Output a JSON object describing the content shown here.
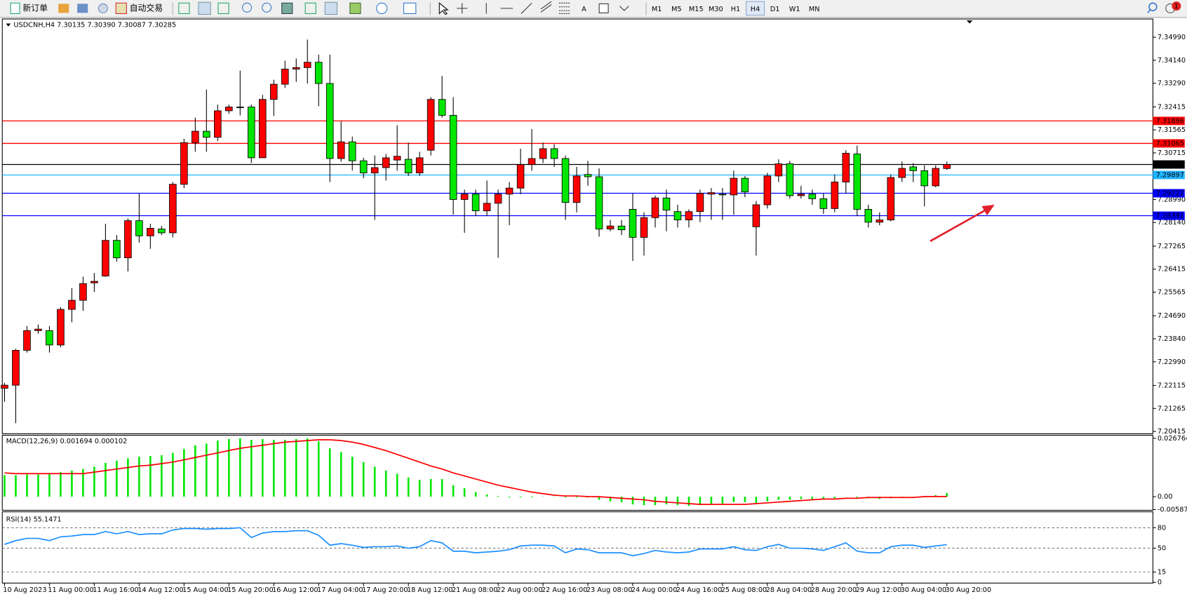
{
  "toolbar": {
    "new_order": "新订单",
    "auto_trading": "自动交易",
    "timeframes": [
      "M1",
      "M5",
      "M15",
      "M30",
      "H1",
      "H4",
      "D1",
      "W1",
      "MN"
    ],
    "active_timeframe": 5,
    "notifications": 1
  },
  "chart_data": [
    {
      "type": "candlestick",
      "title": "USDCNH,H4 7.30135 7.30390 7.30087 7.30285",
      "up_color": "#ff0000",
      "down_color": "#00e600",
      "categories": [
        "10 Aug 2023",
        null,
        null,
        null,
        "11 Aug 00:00",
        null,
        null,
        null,
        "11 Aug 16:00",
        null,
        null,
        null,
        "14 Aug 12:00",
        null,
        null,
        null,
        "15 Aug 04:00",
        null,
        null,
        null,
        "15 Aug 20:00",
        null,
        null,
        null,
        "16 Aug 12:00",
        null,
        null,
        null,
        "17 Aug 04:00",
        null,
        null,
        null,
        "17 Aug 20:00",
        null,
        null,
        null,
        "18 Aug 12:00",
        null,
        null,
        null,
        "21 Aug 08:00",
        null,
        null,
        null,
        "22 Aug 00:00",
        null,
        null,
        null,
        "22 Aug 16:00",
        null,
        null,
        null,
        "23 Aug 08:00",
        null,
        null,
        null,
        "24 Aug 00:00",
        null,
        null,
        null,
        "24 Aug 16:00",
        null,
        null,
        null,
        "25 Aug 08:00",
        null,
        null,
        null,
        "28 Aug 04:00",
        null,
        null,
        null,
        "28 Aug 20:00",
        null,
        null,
        null,
        "29 Aug 12:00",
        null,
        null,
        null,
        "30 Aug 04:00",
        null,
        null,
        null,
        "30 Aug 20:00"
      ],
      "ohlc": [
        [
          7.22012,
          7.22208,
          7.21508,
          7.22124
        ],
        [
          7.22124,
          7.2347,
          7.20723,
          7.23414
        ],
        [
          7.23414,
          7.24311,
          7.2333,
          7.24142
        ],
        [
          7.24142,
          7.24367,
          7.2403,
          7.24198
        ],
        [
          7.24142,
          7.24311,
          7.2333,
          7.2361
        ],
        [
          7.2361,
          7.25011,
          7.23526,
          7.24927
        ],
        [
          7.24927,
          7.25712,
          7.24451,
          7.25264
        ],
        [
          7.25264,
          7.26132,
          7.24871,
          7.2588
        ],
        [
          7.25908,
          7.26273,
          7.25572,
          7.25964
        ],
        [
          7.2616,
          7.28094,
          7.26132,
          7.27478
        ],
        [
          7.27478,
          7.27674,
          7.26693,
          7.26833
        ],
        [
          7.26833,
          7.28291,
          7.26329,
          7.28207
        ],
        [
          7.28207,
          7.29216,
          7.27394,
          7.27646
        ],
        [
          7.27646,
          7.28094,
          7.27169,
          7.27926
        ],
        [
          7.27898,
          7.2801,
          7.27674,
          7.27758
        ],
        [
          7.27758,
          7.29636,
          7.2759,
          7.29552
        ],
        [
          7.29552,
          7.31234,
          7.29412,
          7.31094
        ],
        [
          7.31094,
          7.32019,
          7.30757,
          7.31514
        ],
        [
          7.31514,
          7.33056,
          7.30757,
          7.3129
        ],
        [
          7.3129,
          7.32495,
          7.3115,
          7.32271
        ],
        [
          7.32271,
          7.32495,
          7.32159,
          7.32411
        ],
        [
          7.32411,
          7.33756,
          7.32103,
          7.32383
        ],
        [
          7.32411,
          7.32495,
          7.30337,
          7.30533
        ],
        [
          7.30533,
          7.32859,
          7.30533,
          7.32691
        ],
        [
          7.32691,
          7.3342,
          7.32075,
          7.33252
        ],
        [
          7.33252,
          7.34121,
          7.33112,
          7.33812
        ],
        [
          7.33812,
          7.34205,
          7.33336,
          7.33868
        ],
        [
          7.33868,
          7.34905,
          7.3328,
          7.34065
        ],
        [
          7.34065,
          7.34345,
          7.32439,
          7.3328
        ],
        [
          7.3328,
          7.34345,
          7.29636,
          7.30505
        ],
        [
          7.30505,
          7.31878,
          7.30393,
          7.31122
        ],
        [
          7.31122,
          7.31318,
          7.30056,
          7.30421
        ],
        [
          7.30421,
          7.30533,
          7.29776,
          7.29972
        ],
        [
          7.29972,
          7.30617,
          7.28235,
          7.30169
        ],
        [
          7.30169,
          7.30673,
          7.29692,
          7.30533
        ],
        [
          7.30449,
          7.31738,
          7.30056,
          7.30589
        ],
        [
          7.30477,
          7.31094,
          7.2986,
          7.29972
        ],
        [
          7.29972,
          7.30757,
          7.2986,
          7.30533
        ],
        [
          7.30813,
          7.32775,
          7.30617,
          7.32691
        ],
        [
          7.32691,
          7.3356,
          7.32019,
          7.32103
        ],
        [
          7.32103,
          7.32775,
          7.28431,
          7.28991
        ],
        [
          7.28991,
          7.29356,
          7.27758,
          7.29188
        ],
        [
          7.29188,
          7.29356,
          7.28375,
          7.28571
        ],
        [
          7.28571,
          7.29692,
          7.28375,
          7.28851
        ],
        [
          7.28851,
          7.29356,
          7.26833,
          7.29188
        ],
        [
          7.29188,
          7.29636,
          7.28038,
          7.29412
        ],
        [
          7.29412,
          7.30869,
          7.29188,
          7.30281
        ],
        [
          7.30281,
          7.31598,
          7.30056,
          7.30505
        ],
        [
          7.30505,
          7.31094,
          7.30337,
          7.30869
        ],
        [
          7.30869,
          7.31037,
          7.30197,
          7.30505
        ],
        [
          7.30505,
          7.30617,
          7.28235,
          7.28879
        ],
        [
          7.28879,
          7.30197,
          7.28515,
          7.2986
        ],
        [
          7.29916,
          7.30421,
          7.29496,
          7.29832
        ],
        [
          7.29832,
          7.30141,
          7.27618,
          7.27898
        ],
        [
          7.27898,
          7.28235,
          7.27814,
          7.2801
        ],
        [
          7.2801,
          7.28235,
          7.27674,
          7.2787
        ],
        [
          7.28627,
          7.29216,
          7.26721,
          7.2759
        ],
        [
          7.2759,
          7.28515,
          7.26917,
          7.28319
        ],
        [
          7.28319,
          7.29132,
          7.27954,
          7.29047
        ],
        [
          7.29047,
          7.29356,
          7.27814,
          7.28599
        ],
        [
          7.28543,
          7.28795,
          7.27954,
          7.28235
        ],
        [
          7.28235,
          7.28627,
          7.27954,
          7.28543
        ],
        [
          7.28543,
          7.29356,
          7.28151,
          7.29216
        ],
        [
          7.29188,
          7.29412,
          7.28235,
          7.29244
        ],
        [
          7.29188,
          7.29412,
          7.28235,
          7.2916
        ],
        [
          7.2916,
          7.30056,
          7.28431,
          7.29776
        ],
        [
          7.29776,
          7.2986,
          7.29075,
          7.29272
        ],
        [
          7.27982,
          7.28935,
          7.26917,
          7.28795
        ],
        [
          7.28795,
          7.29972,
          7.28655,
          7.2986
        ],
        [
          7.2986,
          7.30477,
          7.29636,
          7.30309
        ],
        [
          7.30309,
          7.30421,
          7.29019,
          7.29132
        ],
        [
          7.29132,
          7.29496,
          7.29019,
          7.29188
        ],
        [
          7.29188,
          7.29356,
          7.28795,
          7.29019
        ],
        [
          7.29019,
          7.29216,
          7.28459,
          7.28655
        ],
        [
          7.28655,
          7.29916,
          7.28515,
          7.29636
        ],
        [
          7.29636,
          7.30813,
          7.29216,
          7.30701
        ],
        [
          7.30673,
          7.30981,
          7.28375,
          7.28627
        ],
        [
          7.28627,
          7.28795,
          7.27954,
          7.28151
        ],
        [
          7.28151,
          7.28515,
          7.28038,
          7.28235
        ],
        [
          7.28235,
          7.29916,
          7.28179,
          7.29804
        ],
        [
          7.29804,
          7.30393,
          7.29636,
          7.30141
        ],
        [
          7.30197,
          7.30337,
          7.29636,
          7.30056
        ],
        [
          7.30056,
          7.30253,
          7.28739,
          7.29496
        ],
        [
          7.29496,
          7.30253,
          7.2944,
          7.30141
        ],
        [
          7.30135,
          7.3039,
          7.30087,
          7.30285
        ]
      ],
      "ylim": [
        7.2033,
        7.3561
      ],
      "yticks": [
        {
          "value": 7.3499,
          "label": "7.34990"
        },
        {
          "value": 7.3414,
          "label": "7.34140"
        },
        {
          "value": 7.3329,
          "label": "7.33290"
        },
        7.32415,
        7.31565,
        7.30715,
        {
          "value": 7.2899,
          "label": "7.28990"
        },
        {
          "value": 7.2814,
          "label": "7.28140"
        },
        7.27265,
        7.26415,
        7.25565,
        {
          "value": 7.2469,
          "label": "7.24690"
        },
        {
          "value": 7.2384,
          "label": "7.23840"
        },
        {
          "value": 7.2299,
          "label": "7.22990"
        },
        7.22115,
        7.21265,
        7.20415
      ],
      "grid": false,
      "levels": [
        {
          "value": 7.31896,
          "color": "#ff0000"
        },
        {
          "value": 7.31065,
          "color": "#ff0000"
        },
        {
          "value": 7.30285,
          "color": "#000000"
        },
        {
          "value": 7.29897,
          "color": "#1eb4ff"
        },
        {
          "value": 7.29222,
          "color": "#0000ff"
        },
        {
          "value": 7.28391,
          "color": "#0000ff"
        }
      ]
    },
    {
      "type": "macd",
      "title": "MACD(12,26,9) 0.001694 0.000102",
      "series": [
        {
          "kind": "bar",
          "color": "#00e600",
          "values": [
            0.00986,
            0.00986,
            0.01021,
            0.01021,
            0.01056,
            0.01126,
            0.01197,
            0.01267,
            0.01373,
            0.01549,
            0.01654,
            0.0176,
            0.0183,
            0.01866,
            0.01901,
            0.02006,
            0.02182,
            0.02358,
            0.02429,
            0.0257,
            0.0264,
            0.02675,
            0.02605,
            0.0264,
            0.02605,
            0.02605,
            0.0264,
            0.02675,
            0.02534,
            0.02218,
            0.02042,
            0.0183,
            0.01584,
            0.01373,
            0.01197,
            0.01056,
            0.0088,
            0.00774,
            0.0081,
            0.0081,
            0.00528,
            0.00387,
            0.00211,
            0.00106,
            0.00035,
            -0.00035,
            -0.00035,
            -0.00035,
            0.00012,
            -0.0001,
            -0.00035,
            -0.00035,
            -0.00035,
            -0.00141,
            -0.00211,
            -0.00246,
            -0.00352,
            -0.00387,
            -0.00387,
            -0.00352,
            -0.00387,
            -0.00422,
            -0.00387,
            -0.00352,
            -0.00317,
            -0.00246,
            -0.00246,
            -0.00282,
            -0.00211,
            -0.00141,
            -0.00141,
            -0.00106,
            -0.00106,
            -0.00106,
            -0.0007,
            5e-05,
            -0.00035,
            -0.0007,
            -0.00106,
            -0.0007,
            -0.00035,
            5e-05,
            0.00035,
            0.0007,
            0.001694
          ]
        },
        {
          "kind": "line",
          "color": "#ff0000",
          "values": [
            0.01091,
            0.01056,
            0.01056,
            0.01056,
            0.01056,
            0.01056,
            0.01056,
            0.01056,
            0.01126,
            0.01197,
            0.01267,
            0.01338,
            0.01408,
            0.01443,
            0.01514,
            0.01584,
            0.0169,
            0.01795,
            0.01901,
            0.02006,
            0.02112,
            0.02218,
            0.02288,
            0.02358,
            0.02429,
            0.02499,
            0.02534,
            0.0257,
            0.02605,
            0.02605,
            0.0257,
            0.02499,
            0.02394,
            0.02253,
            0.02112,
            0.01936,
            0.0176,
            0.01584,
            0.01408,
            0.01267,
            0.01091,
            0.0095,
            0.0081,
            0.00669,
            0.00528,
            0.00422,
            0.00317,
            0.00211,
            0.00141,
            0.0007,
            0.00035,
            0.00035,
            5e-05,
            0,
            -0.00035,
            -0.0007,
            -0.00106,
            -0.00141,
            -0.00211,
            -0.00246,
            -0.00282,
            -0.00317,
            -0.00352,
            -0.00352,
            -0.00352,
            -0.00352,
            -0.00352,
            -0.00317,
            -0.00282,
            -0.00246,
            -0.00211,
            -0.00176,
            -0.00141,
            -0.00106,
            -0.00106,
            -0.0007,
            -0.0007,
            -0.00035,
            -0.00035,
            -0.00035,
            -0.00035,
            -0.00035,
            5e-05,
            8e-05,
            0.000102
          ]
        }
      ],
      "ylim": [
        -0.005872,
        0.026764
      ],
      "yticks": [
        0.026764,
        {
          "value": 0,
          "label": "0.00"
        },
        -0.005872
      ],
      "grid": false
    },
    {
      "type": "line",
      "title": "RSI(14) 55.1471",
      "series": [
        {
          "color": "#1e90ff",
          "values": [
            55.6,
            61.1,
            64.4,
            64.4,
            61.1,
            66.7,
            67.8,
            70,
            70,
            74.4,
            71.1,
            74.4,
            70,
            71.1,
            71.1,
            76.7,
            78.9,
            78.9,
            77.8,
            78.9,
            78.9,
            80,
            65.6,
            72.2,
            74.4,
            74.4,
            75.6,
            75.6,
            68.9,
            54.4,
            56.7,
            54.4,
            51.1,
            52.2,
            52.2,
            53.3,
            50,
            52.2,
            61.1,
            57.8,
            45.6,
            45.6,
            43.3,
            44.4,
            45.6,
            47.8,
            53.3,
            54.4,
            54.4,
            53.3,
            43.3,
            48.9,
            47.8,
            43.3,
            43.3,
            43.3,
            38.9,
            42.2,
            46.7,
            44.4,
            43.3,
            44.4,
            48.9,
            48.9,
            48.9,
            52.2,
            47.8,
            46.7,
            52.2,
            55.6,
            50,
            50,
            48.9,
            46.7,
            52.2,
            57.8,
            45.6,
            43.3,
            43.3,
            52.2,
            54.4,
            54.4,
            51.1,
            53.3,
            55.1471
          ]
        }
      ],
      "ylim": [
        0,
        100
      ],
      "yticks": [
        80,
        50,
        15,
        0
      ],
      "grid": true
    }
  ]
}
